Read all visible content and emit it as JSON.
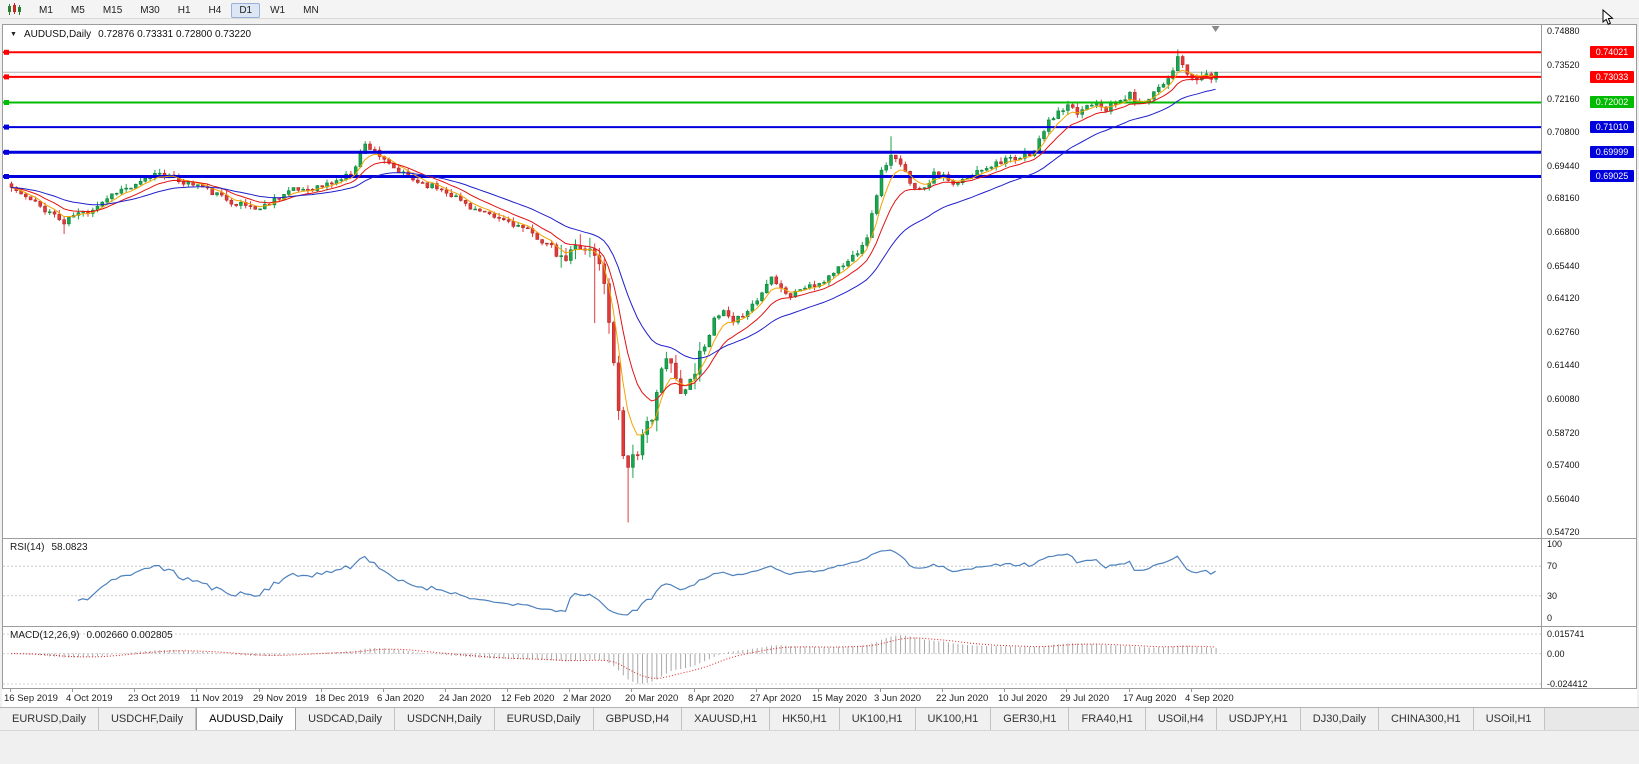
{
  "toolbar": {
    "periods": [
      "M1",
      "M5",
      "M15",
      "M30",
      "H1",
      "H4",
      "D1",
      "W1",
      "MN"
    ],
    "active_period": "D1"
  },
  "icons": {
    "title_dropdown": "▼"
  },
  "chart": {
    "symbol_title": "AUDUSD,Daily",
    "ohlc_text": "0.72876 0.73331 0.72800 0.73220"
  },
  "y_axis": {
    "ticks": [
      "0.74880",
      "0.73520",
      "0.72160",
      "0.70800",
      "0.69440",
      "0.68160",
      "0.66800",
      "0.65440",
      "0.64120",
      "0.62760",
      "0.61440",
      "0.60080",
      "0.58720",
      "0.57400",
      "0.56040",
      "0.54720"
    ]
  },
  "hlines": [
    {
      "price": "0.74021",
      "color": "#ff0000",
      "width": 2
    },
    {
      "price": "0.73033",
      "color": "#ff0000",
      "width": 2
    },
    {
      "price": "0.72002",
      "color": "#00bb00",
      "width": 2
    },
    {
      "price": "0.71010",
      "color": "#0000dd",
      "width": 2
    },
    {
      "price": "0.69999",
      "color": "#0000dd",
      "width": 3
    },
    {
      "price": "0.69025",
      "color": "#0000dd",
      "width": 3
    }
  ],
  "x_axis": {
    "labels": [
      "16 Sep 2019",
      "4 Oct 2019",
      "23 Oct 2019",
      "11 Nov 2019",
      "29 Nov 2019",
      "18 Dec 2019",
      "6 Jan 2020",
      "24 Jan 2020",
      "12 Feb 2020",
      "2 Mar 2020",
      "20 Mar 2020",
      "8 Apr 2020",
      "27 Apr 2020",
      "15 May 2020",
      "3 Jun 2020",
      "22 Jun 2020",
      "10 Jul 2020",
      "29 Jul 2020",
      "17 Aug 2020",
      "4 Sep 2020"
    ]
  },
  "rsi": {
    "label": "RSI(14)",
    "value": "58.0823",
    "levels": [
      "100",
      "70",
      "30",
      "0"
    ],
    "level_values": [
      100,
      70,
      30,
      0
    ]
  },
  "macd": {
    "label": "MACD(12,26,9)",
    "values": "0.002660 0.002805",
    "axis": [
      "0.015741",
      "0.00",
      "-0.024412"
    ],
    "axis_values": [
      0.015741,
      0,
      -0.024412
    ]
  },
  "tabs": {
    "items": [
      "EURUSD,Daily",
      "USDCHF,Daily",
      "AUDUSD,Daily",
      "USDCAD,Daily",
      "USDCNH,Daily",
      "EURUSD,Daily",
      "GBPUSD,H4",
      "XAUUSD,H1",
      "HK50,H1",
      "UK100,H1",
      "UK100,H1",
      "GER30,H1",
      "FRA40,H1",
      "USOil,H4",
      "USDJPY,H1",
      "DJ30,Daily",
      "CHINA300,H1",
      "USOil,H1"
    ],
    "active_index": 2
  },
  "colors": {
    "up": "#18a64e",
    "up_stroke": "#0b7a36",
    "down": "#e23a3a",
    "down_stroke": "#a81f1f",
    "ma_fast": "#f5a300",
    "ma_mid": "#e31212",
    "ma_slow": "#2020cc",
    "rsi": "#4f81bd",
    "macd_hist": "#a8a8a8",
    "macd_signal": "#e02020",
    "bid_line": "#b4b4b4"
  },
  "chart_data": {
    "type": "candlestick",
    "symbol": "AUDUSD",
    "timeframe": "Daily",
    "candle_count": 253,
    "last_close": 0.7322,
    "visible_high": 0.7488,
    "visible_low": 0.5472,
    "ma": {
      "fast": 5,
      "mid": 11,
      "slow": 26
    },
    "gen": {
      "seed": 11,
      "base_range": 0.0052,
      "crash_mult": 2.6,
      "crash_start": 115,
      "crash_end": 144,
      "noise": 0.25
    },
    "price_anchors": [
      [
        0,
        0.6858
      ],
      [
        3,
        0.6818
      ],
      [
        6,
        0.6782
      ],
      [
        9,
        0.6748
      ],
      [
        11,
        0.6712
      ],
      [
        13,
        0.6748
      ],
      [
        16,
        0.6762
      ],
      [
        19,
        0.6802
      ],
      [
        22,
        0.6845
      ],
      [
        26,
        0.6862
      ],
      [
        29,
        0.6902
      ],
      [
        31,
        0.6922
      ],
      [
        34,
        0.6892
      ],
      [
        37,
        0.6875
      ],
      [
        39,
        0.6868
      ],
      [
        42,
        0.6838
      ],
      [
        45,
        0.681
      ],
      [
        48,
        0.679
      ],
      [
        52,
        0.6772
      ],
      [
        55,
        0.6812
      ],
      [
        58,
        0.6842
      ],
      [
        61,
        0.6852
      ],
      [
        65,
        0.6862
      ],
      [
        68,
        0.6885
      ],
      [
        71,
        0.6912
      ],
      [
        74,
        0.703
      ],
      [
        76,
        0.7012
      ],
      [
        78,
        0.696
      ],
      [
        81,
        0.692
      ],
      [
        84,
        0.689
      ],
      [
        87,
        0.687
      ],
      [
        91,
        0.6845
      ],
      [
        94,
        0.6805
      ],
      [
        97,
        0.677
      ],
      [
        100,
        0.674
      ],
      [
        104,
        0.6722
      ],
      [
        107,
        0.6692
      ],
      [
        110,
        0.6658
      ],
      [
        113,
        0.6615
      ],
      [
        115,
        0.6555
      ],
      [
        117,
        0.659
      ],
      [
        119,
        0.664
      ],
      [
        121,
        0.66
      ],
      [
        122,
        0.6585
      ],
      [
        123,
        0.6542
      ],
      [
        124,
        0.649
      ],
      [
        125,
        0.63
      ],
      [
        126,
        0.6165
      ],
      [
        127,
        0.5988
      ],
      [
        128,
        0.5775
      ],
      [
        129,
        0.574
      ],
      [
        130,
        0.5805
      ],
      [
        131,
        0.576
      ],
      [
        132,
        0.5835
      ],
      [
        133,
        0.59
      ],
      [
        134,
        0.5955
      ],
      [
        135,
        0.6038
      ],
      [
        136,
        0.6105
      ],
      [
        137,
        0.6165
      ],
      [
        138,
        0.6138
      ],
      [
        139,
        0.608
      ],
      [
        141,
        0.6045
      ],
      [
        143,
        0.613
      ],
      [
        145,
        0.6228
      ],
      [
        147,
        0.632
      ],
      [
        149,
        0.6358
      ],
      [
        151,
        0.6305
      ],
      [
        153,
        0.635
      ],
      [
        156,
        0.6405
      ],
      [
        158,
        0.6468
      ],
      [
        159,
        0.651
      ],
      [
        161,
        0.6455
      ],
      [
        163,
        0.642
      ],
      [
        165,
        0.645
      ],
      [
        167,
        0.6465
      ],
      [
        169,
        0.646
      ],
      [
        171,
        0.6505
      ],
      [
        173,
        0.6535
      ],
      [
        175,
        0.656
      ],
      [
        177,
        0.6605
      ],
      [
        179,
        0.6665
      ],
      [
        180,
        0.6745
      ],
      [
        181,
        0.6835
      ],
      [
        182,
        0.692
      ],
      [
        183,
        0.6955
      ],
      [
        184,
        0.6985
      ],
      [
        185,
        0.6965
      ],
      [
        186,
        0.6945
      ],
      [
        188,
        0.6885
      ],
      [
        190,
        0.6845
      ],
      [
        192,
        0.6885
      ],
      [
        193,
        0.6925
      ],
      [
        195,
        0.69
      ],
      [
        197,
        0.6865
      ],
      [
        199,
        0.6885
      ],
      [
        201,
        0.6905
      ],
      [
        203,
        0.6935
      ],
      [
        205,
        0.695
      ],
      [
        208,
        0.6975
      ],
      [
        210,
        0.696
      ],
      [
        212,
        0.699
      ],
      [
        214,
        0.7005
      ],
      [
        216,
        0.709
      ],
      [
        218,
        0.7145
      ],
      [
        221,
        0.718
      ],
      [
        223,
        0.7155
      ],
      [
        225,
        0.719
      ],
      [
        227,
        0.721
      ],
      [
        229,
        0.7175
      ],
      [
        231,
        0.7195
      ],
      [
        234,
        0.723
      ],
      [
        236,
        0.719
      ],
      [
        238,
        0.7225
      ],
      [
        240,
        0.7265
      ],
      [
        242,
        0.73
      ],
      [
        244,
        0.7375
      ],
      [
        245,
        0.735
      ],
      [
        246,
        0.7315
      ],
      [
        247,
        0.7285
      ],
      [
        249,
        0.7305
      ],
      [
        250,
        0.7315
      ],
      [
        251,
        0.73
      ],
      [
        252,
        0.7322
      ]
    ],
    "wick_overrides": [
      {
        "i": 11,
        "low": 0.6671
      },
      {
        "i": 74,
        "high": 0.7034
      },
      {
        "i": 122,
        "low": 0.6313
      },
      {
        "i": 129,
        "low": 0.551
      },
      {
        "i": 184,
        "high": 0.7064
      },
      {
        "i": 244,
        "high": 0.7414
      }
    ]
  }
}
